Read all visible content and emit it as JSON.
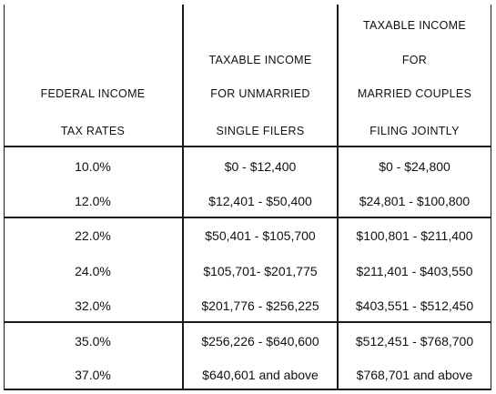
{
  "header": {
    "col1": [
      "FEDERAL INCOME",
      "TAX RATES"
    ],
    "col2": [
      "TAXABLE INCOME",
      "FOR UNMARRIED",
      "SINGLE FILERS"
    ],
    "col3": [
      "TAXABLE INCOME",
      "FOR",
      "MARRIED COUPLES",
      "FILING JOINTLY"
    ]
  },
  "rows": [
    {
      "rate": "10.0%",
      "single": "$0 - $12,400",
      "married": "$0 - $24,800"
    },
    {
      "rate": "12.0%",
      "single": "$12,401 - $50,400",
      "married": "$24,801 - $100,800"
    },
    {
      "rate": "22.0%",
      "single": "$50,401 - $105,700",
      "married": "$100,801 - $211,400"
    },
    {
      "rate": "24.0%",
      "single": "$105,701- $201,775",
      "married": "$211,401 - $403,550"
    },
    {
      "rate": "32.0%",
      "single": "$201,776 - $256,225",
      "married": "$403,551 - $512,450"
    },
    {
      "rate": "35.0%",
      "single": "$256,226 - $640,600",
      "married": "$512,451 - $768,700"
    },
    {
      "rate": "37.0%",
      "single": "$640,601 and above",
      "married": "$768,701 and above"
    }
  ]
}
